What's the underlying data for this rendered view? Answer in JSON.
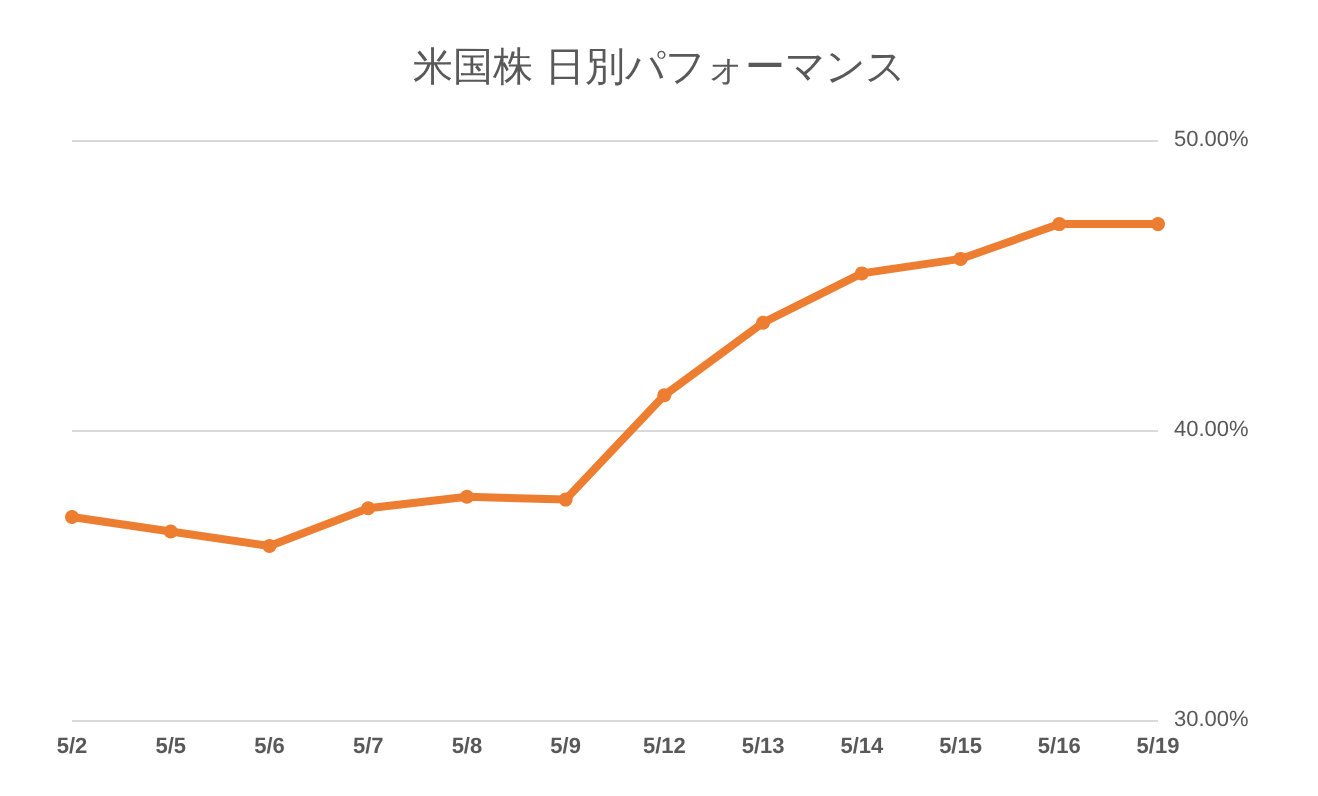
{
  "chart_data": {
    "type": "line",
    "title": "米国株 日別パフォーマンス",
    "categories": [
      "5/2",
      "5/5",
      "5/6",
      "5/7",
      "5/8",
      "5/9",
      "5/12",
      "5/13",
      "5/14",
      "5/15",
      "5/16",
      "5/19"
    ],
    "series": [
      {
        "color": "#ed7d31",
        "values": [
          37.0,
          36.5,
          36.0,
          37.3,
          37.7,
          37.6,
          41.2,
          43.7,
          45.4,
          45.9,
          47.1,
          47.1
        ]
      }
    ],
    "ylim": [
      30,
      50
    ],
    "yticks": [
      {
        "value": 30,
        "label": "30.00%"
      },
      {
        "value": 40,
        "label": "40.00%"
      },
      {
        "value": 50,
        "label": "50.00%"
      }
    ],
    "grid": "y",
    "marker": "circle",
    "line_style": "solid"
  }
}
